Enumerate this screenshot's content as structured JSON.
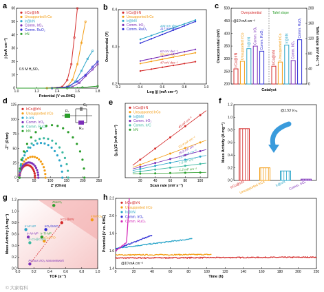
{
  "colors": {
    "IrCo@IrN": "#d42a2a",
    "Unsupported IrCo": "#f39c12",
    "Ir@IrN": "#2aa5c9",
    "Comm. IrO2": "#7b2fb8",
    "Comm. Ir/C": "#3ab8a0",
    "Comm. RuO2": "#2a2ad4",
    "IrN": "#2a9d2a",
    "black": "#000000"
  },
  "panels": {
    "a": "a",
    "b": "b",
    "c": "c",
    "d": "d",
    "e": "e",
    "f": "f",
    "g": "g",
    "h": "h"
  },
  "chart_data": [
    {
      "panel": "a",
      "type": "line",
      "xlabel": "Potential (V vs.RHE)",
      "ylabel": "j (mA cm⁻²)",
      "xlim": [
        1.0,
        1.8
      ],
      "ylim": [
        0,
        60
      ],
      "xticks": [
        "1.0",
        "1.2",
        "1.4",
        "1.6",
        "1.8"
      ],
      "yticks": [
        "0",
        "10",
        "20",
        "30",
        "40",
        "50",
        "60"
      ],
      "annotation": "0.5 M H₂SO₄",
      "series": [
        {
          "name": "IrCo@IrN",
          "color": "#d42a2a",
          "x": [
            1.0,
            1.3,
            1.45,
            1.5,
            1.54,
            1.57,
            1.6
          ],
          "y": [
            0,
            0,
            1,
            6,
            18,
            38,
            60
          ]
        },
        {
          "name": "Unsupported IrCo",
          "color": "#f39c12",
          "x": [
            1.0,
            1.3,
            1.5,
            1.55,
            1.6,
            1.64,
            1.68
          ],
          "y": [
            0,
            0,
            1,
            6,
            18,
            34,
            50
          ]
        },
        {
          "name": "Ir@IrN",
          "color": "#2aa5c9",
          "x": [
            1.0,
            1.35,
            1.52,
            1.58,
            1.64,
            1.7,
            1.75
          ],
          "y": [
            0,
            0,
            1,
            5,
            13,
            22,
            28
          ]
        },
        {
          "name": "Comm. IrO₂",
          "color": "#7b2fb8",
          "x": [
            1.0,
            1.4,
            1.55,
            1.62,
            1.68,
            1.75,
            1.8
          ],
          "y": [
            0,
            0,
            1,
            4,
            9,
            14,
            18
          ]
        },
        {
          "name": "Comm. RuO₂",
          "color": "#2a2ad4",
          "x": [
            1.0,
            1.35,
            1.5,
            1.6,
            1.68,
            1.75,
            1.8
          ],
          "y": [
            0,
            0,
            1,
            5,
            10,
            16,
            20
          ]
        },
        {
          "name": "IrN",
          "color": "#2a9d2a",
          "x": [
            1.0,
            1.5,
            1.65,
            1.8
          ],
          "y": [
            0,
            0,
            0.5,
            1.5
          ]
        }
      ]
    },
    {
      "panel": "b",
      "type": "line",
      "xlabel": "Log |j| (mA cm⁻²)",
      "ylabel": "Overpotential (V)",
      "xlim": [
        0.2,
        1.0
      ],
      "ylim": [
        0.2,
        0.4
      ],
      "xticks": [
        "0.2",
        "0.4",
        "0.6",
        "0.8",
        "1.0"
      ],
      "yticks": [
        "0.2",
        "0.3",
        "0.4"
      ],
      "series": [
        {
          "name": "IrCo@IrN",
          "color": "#d42a2a",
          "label": "47 mV dec⁻¹",
          "x": [
            0.4,
            0.9
          ],
          "y": [
            0.235,
            0.26
          ]
        },
        {
          "name": "Unsupported IrCo",
          "color": "#f39c12",
          "label": "58 mV dec⁻¹",
          "x": [
            0.4,
            0.9
          ],
          "y": [
            0.255,
            0.284
          ]
        },
        {
          "name": "Ir@IrN",
          "color": "#2aa5c9",
          "label": "103 mV dec⁻¹",
          "x": [
            0.4,
            0.9
          ],
          "y": [
            0.32,
            0.372
          ]
        },
        {
          "name": "Comm. IrO₂",
          "color": "#7b2fb8",
          "label": "62 mV dec⁻¹",
          "x": [
            0.4,
            0.9
          ],
          "y": [
            0.262,
            0.293
          ]
        },
        {
          "name": "Comm. RuO₂",
          "color": "#2a2ad4",
          "label": "117 mV dec⁻¹",
          "x": [
            0.4,
            0.9
          ],
          "y": [
            0.31,
            0.368
          ]
        }
      ]
    },
    {
      "panel": "c",
      "type": "bar",
      "xlabel": "Catalyst",
      "ylabel": "Overpotential (mV)",
      "ylabel2": "Tafel slope (mV dec⁻¹)",
      "ylim": [
        200,
        500
      ],
      "ylim2": [
        0,
        200
      ],
      "yticks": [
        "200",
        "250",
        "300",
        "350",
        "400",
        "450",
        "500"
      ],
      "yticks2": [
        "0",
        "40",
        "80",
        "120",
        "160",
        "200"
      ],
      "legend": [
        "Overpotential",
        "Tafel slope"
      ],
      "annotation": "@10 mA cm⁻²",
      "categories": [
        "IrCo@IrN",
        "Unsupported IrCo",
        "Ir@IrN",
        "Comm. IrO₂",
        "Comm. RuO₂"
      ],
      "overpotential": [
        260,
        290,
        340,
        350,
        330
      ],
      "tafel_slope": [
        47,
        58,
        103,
        62,
        117
      ]
    },
    {
      "panel": "d",
      "type": "scatter",
      "xlabel": "Z' (Ohm)",
      "ylabel": "-Z'' (Ohm)",
      "xlim": [
        0,
        250
      ],
      "ylim": [
        0,
        125
      ],
      "xticks": [
        "0",
        "50",
        "100",
        "150",
        "200",
        "250"
      ],
      "yticks": [
        "0",
        "25",
        "50",
        "75",
        "100",
        "125"
      ],
      "circuit_labels": [
        "Rₛ",
        "Cₑ",
        "Rₒₜ"
      ],
      "series": [
        {
          "name": "IrCo@IrN",
          "color": "#d42a2a",
          "start": 5,
          "diameter": 48
        },
        {
          "name": "Unsupported IrCo",
          "color": "#f39c12",
          "start": 5,
          "diameter": 80
        },
        {
          "name": "Ir-IrN",
          "color": "#2aa5c9",
          "start": 5,
          "diameter": 132
        },
        {
          "name": "Comm. IrO₂",
          "color": "#7b2fb8",
          "start": 5,
          "diameter": 58
        },
        {
          "name": "Comm. RuO₂",
          "color": "#3ab8a0",
          "start": 5,
          "diameter": 150
        },
        {
          "name": "IrN",
          "color": "#2a9d2a",
          "start": 5,
          "diameter": 200
        }
      ]
    },
    {
      "panel": "e",
      "type": "scatter",
      "xlabel": "Scan rate (mV s⁻¹)",
      "ylabel": "(jₐ-jₒ)/2 (mA cm⁻²)",
      "xlim": [
        0,
        110
      ],
      "ylim": [
        0,
        6
      ],
      "xticks": [
        "20",
        "40",
        "60",
        "80",
        "100"
      ],
      "series": [
        {
          "name": "IrCo@IrN",
          "color": "#d42a2a",
          "label": "45 mF cm⁻²",
          "slope": 0.045
        },
        {
          "name": "Unsupported IrCo",
          "color": "#f39c12",
          "label": "22.4 mF cm⁻²",
          "slope": 0.0224
        },
        {
          "name": "Ir@IrN",
          "color": "#2aa5c9",
          "label": "12.5 mF cm⁻²",
          "slope": 0.0125
        },
        {
          "name": "Comm. IrO₂",
          "color": "#7b2fb8",
          "label": "15.9 mF cm⁻²",
          "slope": 0.0159
        },
        {
          "name": "Comm. Ir/C",
          "color": "#3ab8a0",
          "label": "7.6 mF cm⁻²",
          "slope": 0.0076
        },
        {
          "name": "IrN",
          "color": "#2a9d2a",
          "label": "1.2 mF cm⁻²",
          "slope": 0.0012
        }
      ],
      "x": [
        20,
        40,
        60,
        80,
        100
      ]
    },
    {
      "panel": "f",
      "type": "bar",
      "xlabel": "",
      "ylabel": "Mass Activity (A mg⁻¹)",
      "ylim": [
        0,
        1.2
      ],
      "yticks": [
        "0.0",
        "0.2",
        "0.4",
        "0.6",
        "0.8",
        "1.0",
        "1.2"
      ],
      "annotation": "@1.53 Vᵣₕₑ",
      "categories": [
        "IrCo@IrN",
        "Unsupported IrCo",
        "Ir@IrN",
        "Comm. IrO₂"
      ],
      "values": [
        0.82,
        0.2,
        0.15,
        0.02
      ],
      "colors": [
        "#d42a2a",
        "#f39c12",
        "#2aa5c9",
        "#7b2fb8"
      ]
    },
    {
      "panel": "g",
      "type": "scatter",
      "xlabel": "TOF (s⁻¹)",
      "ylabel": "Mass Activity (A mg⁻¹)",
      "xlim": [
        0,
        1.0
      ],
      "ylim": [
        0,
        1.2
      ],
      "xticks": [
        "0.0",
        "0.2",
        "0.4",
        "0.6",
        "0.8",
        "1.0"
      ],
      "yticks": [
        "0.0",
        "0.2",
        "0.4",
        "0.6",
        "0.8",
        "1.0",
        "1.2"
      ],
      "points": [
        {
          "label": "IrCo@IrN",
          "x": 0.55,
          "y": 0.8,
          "color": "#d42a2a"
        },
        {
          "label": "RuIrOₓ",
          "x": 0.45,
          "y": 1.1,
          "color": "#2a9d2a"
        },
        {
          "label": "IrNi/IrOₓ",
          "x": 0.93,
          "y": 0.85,
          "color": "#f39c12"
        },
        {
          "label": "IrOₓ/SrIrO₃",
          "x": 0.35,
          "y": 0.68,
          "color": "#2a2ad4"
        },
        {
          "label": "Ir-W-NP",
          "x": 0.1,
          "y": 0.68,
          "color": "#2aa5c9"
        },
        {
          "label": "Ir-Ni-NP",
          "x": 0.13,
          "y": 0.55,
          "color": "#7b2fb8"
        },
        {
          "label": "Ir-Ti-NP",
          "x": 0.3,
          "y": 0.55,
          "color": "#2a9d2a"
        },
        {
          "label": "IrOₓ/ATO",
          "x": 0.33,
          "y": 0.48,
          "color": "#f39c12"
        },
        {
          "label": "Ir-Co@CoOₓ",
          "x": 0.15,
          "y": 0.45,
          "color": "#3ab8a0"
        },
        {
          "label": "Porous IrOₓ nanonetwork",
          "x": 0.15,
          "y": 0.08,
          "color": "#7b2fb8"
        }
      ]
    },
    {
      "panel": "h",
      "type": "line",
      "xlabel": "Time (h)",
      "ylabel": "Potential (V vs. RHE)",
      "xlim": [
        0,
        220
      ],
      "ylim": [
        1.4,
        2.2
      ],
      "xticks": [
        "0",
        "20",
        "40",
        "60",
        "80",
        "100",
        "120",
        "140",
        "160",
        "180",
        "200",
        "220"
      ],
      "yticks": [
        "1.4",
        "1.6",
        "1.8",
        "2.0",
        "2.2"
      ],
      "annotation": "@10 mA cm⁻²",
      "series": [
        {
          "name": "IrCo@IrN",
          "color": "#d42a2a",
          "x": [
            0,
            220
          ],
          "y": [
            1.52,
            1.53
          ]
        },
        {
          "name": "Unsupported IrCo",
          "color": "#f39c12",
          "x": [
            0,
            105
          ],
          "y": [
            1.555,
            1.56
          ]
        },
        {
          "name": "Ir@IrN",
          "color": "#2aa5c9",
          "x": [
            0,
            84
          ],
          "y": [
            1.63,
            1.74
          ]
        },
        {
          "name": "Comm. IrO₂",
          "color": "#2a2ad4",
          "x": [
            0,
            40
          ],
          "y": [
            1.62,
            1.78
          ]
        },
        {
          "name": "Comm. RuO₂",
          "color": "#d42ab8",
          "x": [
            0,
            12,
            14,
            15
          ],
          "y": [
            1.6,
            1.7,
            2.0,
            2.2
          ]
        }
      ]
    }
  ],
  "watermark": "© 大家有科"
}
